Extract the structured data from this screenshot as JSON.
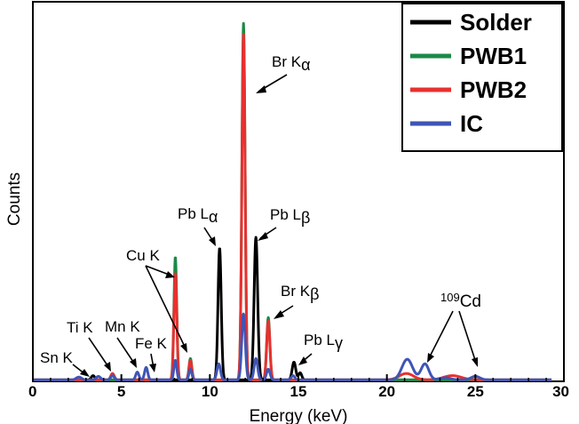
{
  "chart_data": {
    "type": "line",
    "title": "",
    "xlabel": "Energy (keV)",
    "ylabel": "Counts",
    "xlim": [
      0,
      30
    ],
    "ylim": [
      0,
      1.0
    ],
    "xticks": [
      0,
      5,
      10,
      15,
      20,
      25,
      30
    ],
    "grid": false,
    "legend_position": "top-right",
    "series": [
      {
        "name": "Solder",
        "color": "#000000",
        "peaks": [
          {
            "x": 3.4,
            "h": 0.012,
            "w": 0.1
          },
          {
            "x": 10.55,
            "h": 0.37,
            "w": 0.09
          },
          {
            "x": 12.6,
            "h": 0.4,
            "w": 0.1
          },
          {
            "x": 14.75,
            "h": 0.05,
            "w": 0.1
          },
          {
            "x": 15.1,
            "h": 0.02,
            "w": 0.09
          }
        ]
      },
      {
        "name": "PWB1",
        "color": "#1a8a47",
        "peaks": [
          {
            "x": 8.05,
            "h": 0.345,
            "w": 0.08
          },
          {
            "x": 8.9,
            "h": 0.06,
            "w": 0.08
          },
          {
            "x": 11.9,
            "h": 1.0,
            "w": 0.09
          },
          {
            "x": 13.3,
            "h": 0.175,
            "w": 0.09
          }
        ]
      },
      {
        "name": "PWB2",
        "color": "#e8302f",
        "peaks": [
          {
            "x": 4.5,
            "h": 0.018,
            "w": 0.1
          },
          {
            "x": 8.05,
            "h": 0.3,
            "w": 0.08
          },
          {
            "x": 8.9,
            "h": 0.055,
            "w": 0.08
          },
          {
            "x": 11.9,
            "h": 0.97,
            "w": 0.09
          },
          {
            "x": 13.3,
            "h": 0.165,
            "w": 0.09
          },
          {
            "x": 21.1,
            "h": 0.018,
            "w": 0.4
          },
          {
            "x": 23.7,
            "h": 0.012,
            "w": 0.5
          }
        ]
      },
      {
        "name": "IC",
        "color": "#3f55b5",
        "peaks": [
          {
            "x": 2.6,
            "h": 0.008,
            "w": 0.15
          },
          {
            "x": 3.7,
            "h": 0.01,
            "w": 0.12
          },
          {
            "x": 4.5,
            "h": 0.012,
            "w": 0.1
          },
          {
            "x": 5.9,
            "h": 0.022,
            "w": 0.09
          },
          {
            "x": 6.4,
            "h": 0.035,
            "w": 0.09
          },
          {
            "x": 8.05,
            "h": 0.055,
            "w": 0.08
          },
          {
            "x": 8.9,
            "h": 0.03,
            "w": 0.08
          },
          {
            "x": 10.5,
            "h": 0.045,
            "w": 0.1
          },
          {
            "x": 11.9,
            "h": 0.185,
            "w": 0.1
          },
          {
            "x": 12.6,
            "h": 0.06,
            "w": 0.1
          },
          {
            "x": 13.3,
            "h": 0.03,
            "w": 0.1
          },
          {
            "x": 14.7,
            "h": 0.012,
            "w": 0.1
          },
          {
            "x": 21.15,
            "h": 0.058,
            "w": 0.3
          },
          {
            "x": 22.15,
            "h": 0.045,
            "w": 0.22
          },
          {
            "x": 23.3,
            "h": 0.006,
            "w": 0.3
          },
          {
            "x": 25.0,
            "h": 0.01,
            "w": 0.25
          }
        ]
      }
    ],
    "annotations": [
      {
        "label": "Br K",
        "sub": "α"
      },
      {
        "label": "Pb L",
        "sub": "α"
      },
      {
        "label": "Pb L",
        "sub": "β"
      },
      {
        "label": "Cu K",
        "sub": ""
      },
      {
        "label": "Br K",
        "sub": "β"
      },
      {
        "label": "Pb L",
        "sub": "γ"
      },
      {
        "label": "Ti K",
        "sub": ""
      },
      {
        "label": "Mn K",
        "sub": ""
      },
      {
        "label": "Fe K",
        "sub": ""
      },
      {
        "label": "Sn K",
        "sub": ""
      },
      {
        "label": "Cd",
        "sup": "109"
      }
    ]
  }
}
